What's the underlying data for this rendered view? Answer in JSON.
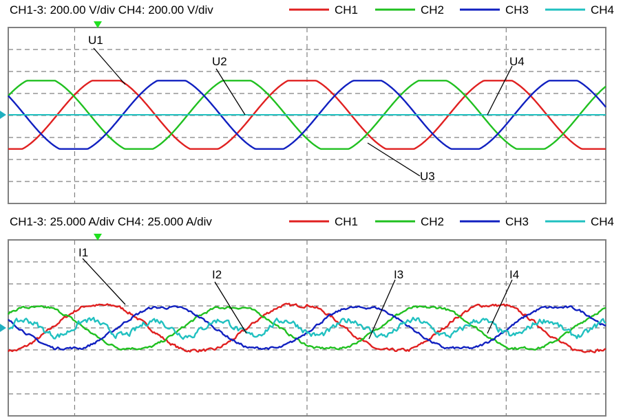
{
  "chart_data": [
    {
      "type": "line",
      "scale_text": "CH1-3: 200.00 V/div  CH4: 200.00 V/div",
      "grid": true,
      "divisions": {
        "x": 10,
        "y": 8
      },
      "legend_position": "top",
      "x_range_periods": [
        0,
        3.25
      ],
      "y_range_div": [
        -4,
        4
      ],
      "series": [
        {
          "name": "CH1",
          "color": "#e02020",
          "kind": "sine",
          "amplitude_div": 1.6,
          "period_div": 2.95,
          "phase_deg": 270,
          "noise": 0
        },
        {
          "name": "CH2",
          "color": "#20c020",
          "kind": "sine",
          "amplitude_div": 1.6,
          "period_div": 2.95,
          "phase_deg": 30,
          "noise": 0
        },
        {
          "name": "CH3",
          "color": "#1020c0",
          "kind": "sine",
          "amplitude_div": 1.6,
          "period_div": 2.95,
          "phase_deg": 150,
          "noise": 0
        },
        {
          "name": "CH4",
          "color": "#20c0c0",
          "kind": "flat",
          "amplitude_div": 0,
          "period_div": 2.95,
          "phase_deg": 0,
          "noise": 0
        }
      ],
      "annotations": [
        {
          "text": "U1",
          "series": "CH1"
        },
        {
          "text": "U2",
          "series": "CH2"
        },
        {
          "text": "U3",
          "series": "CH3"
        },
        {
          "text": "U4",
          "series": "CH4"
        }
      ]
    },
    {
      "type": "line",
      "scale_text": "CH1-3: 25.000 A/div  CH4: 25.000 A/div",
      "grid": true,
      "divisions": {
        "x": 10,
        "y": 8
      },
      "legend_position": "top",
      "x_range_periods": [
        0,
        3.25
      ],
      "y_range_div": [
        -4,
        4
      ],
      "series": [
        {
          "name": "CH1",
          "color": "#e02020",
          "kind": "sine",
          "amplitude_div": 1.05,
          "period_div": 2.95,
          "phase_deg": 280,
          "noise": 0.06
        },
        {
          "name": "CH2",
          "color": "#20c020",
          "kind": "sine",
          "amplitude_div": 0.95,
          "period_div": 2.95,
          "phase_deg": 40,
          "noise": 0.05
        },
        {
          "name": "CH3",
          "color": "#1020c0",
          "kind": "sine",
          "amplitude_div": 0.95,
          "period_div": 2.95,
          "phase_deg": 160,
          "noise": 0.05
        },
        {
          "name": "CH4",
          "color": "#20c0c0",
          "kind": "ripple",
          "amplitude_div": 0.35,
          "period_div": 0.98,
          "phase_deg": 0,
          "noise": 0.12
        }
      ],
      "annotations": [
        {
          "text": "I1",
          "series": "CH1"
        },
        {
          "text": "I2",
          "series": "CH2"
        },
        {
          "text": "I3",
          "series": "CH3"
        },
        {
          "text": "I4",
          "series": "CH4"
        }
      ]
    }
  ]
}
